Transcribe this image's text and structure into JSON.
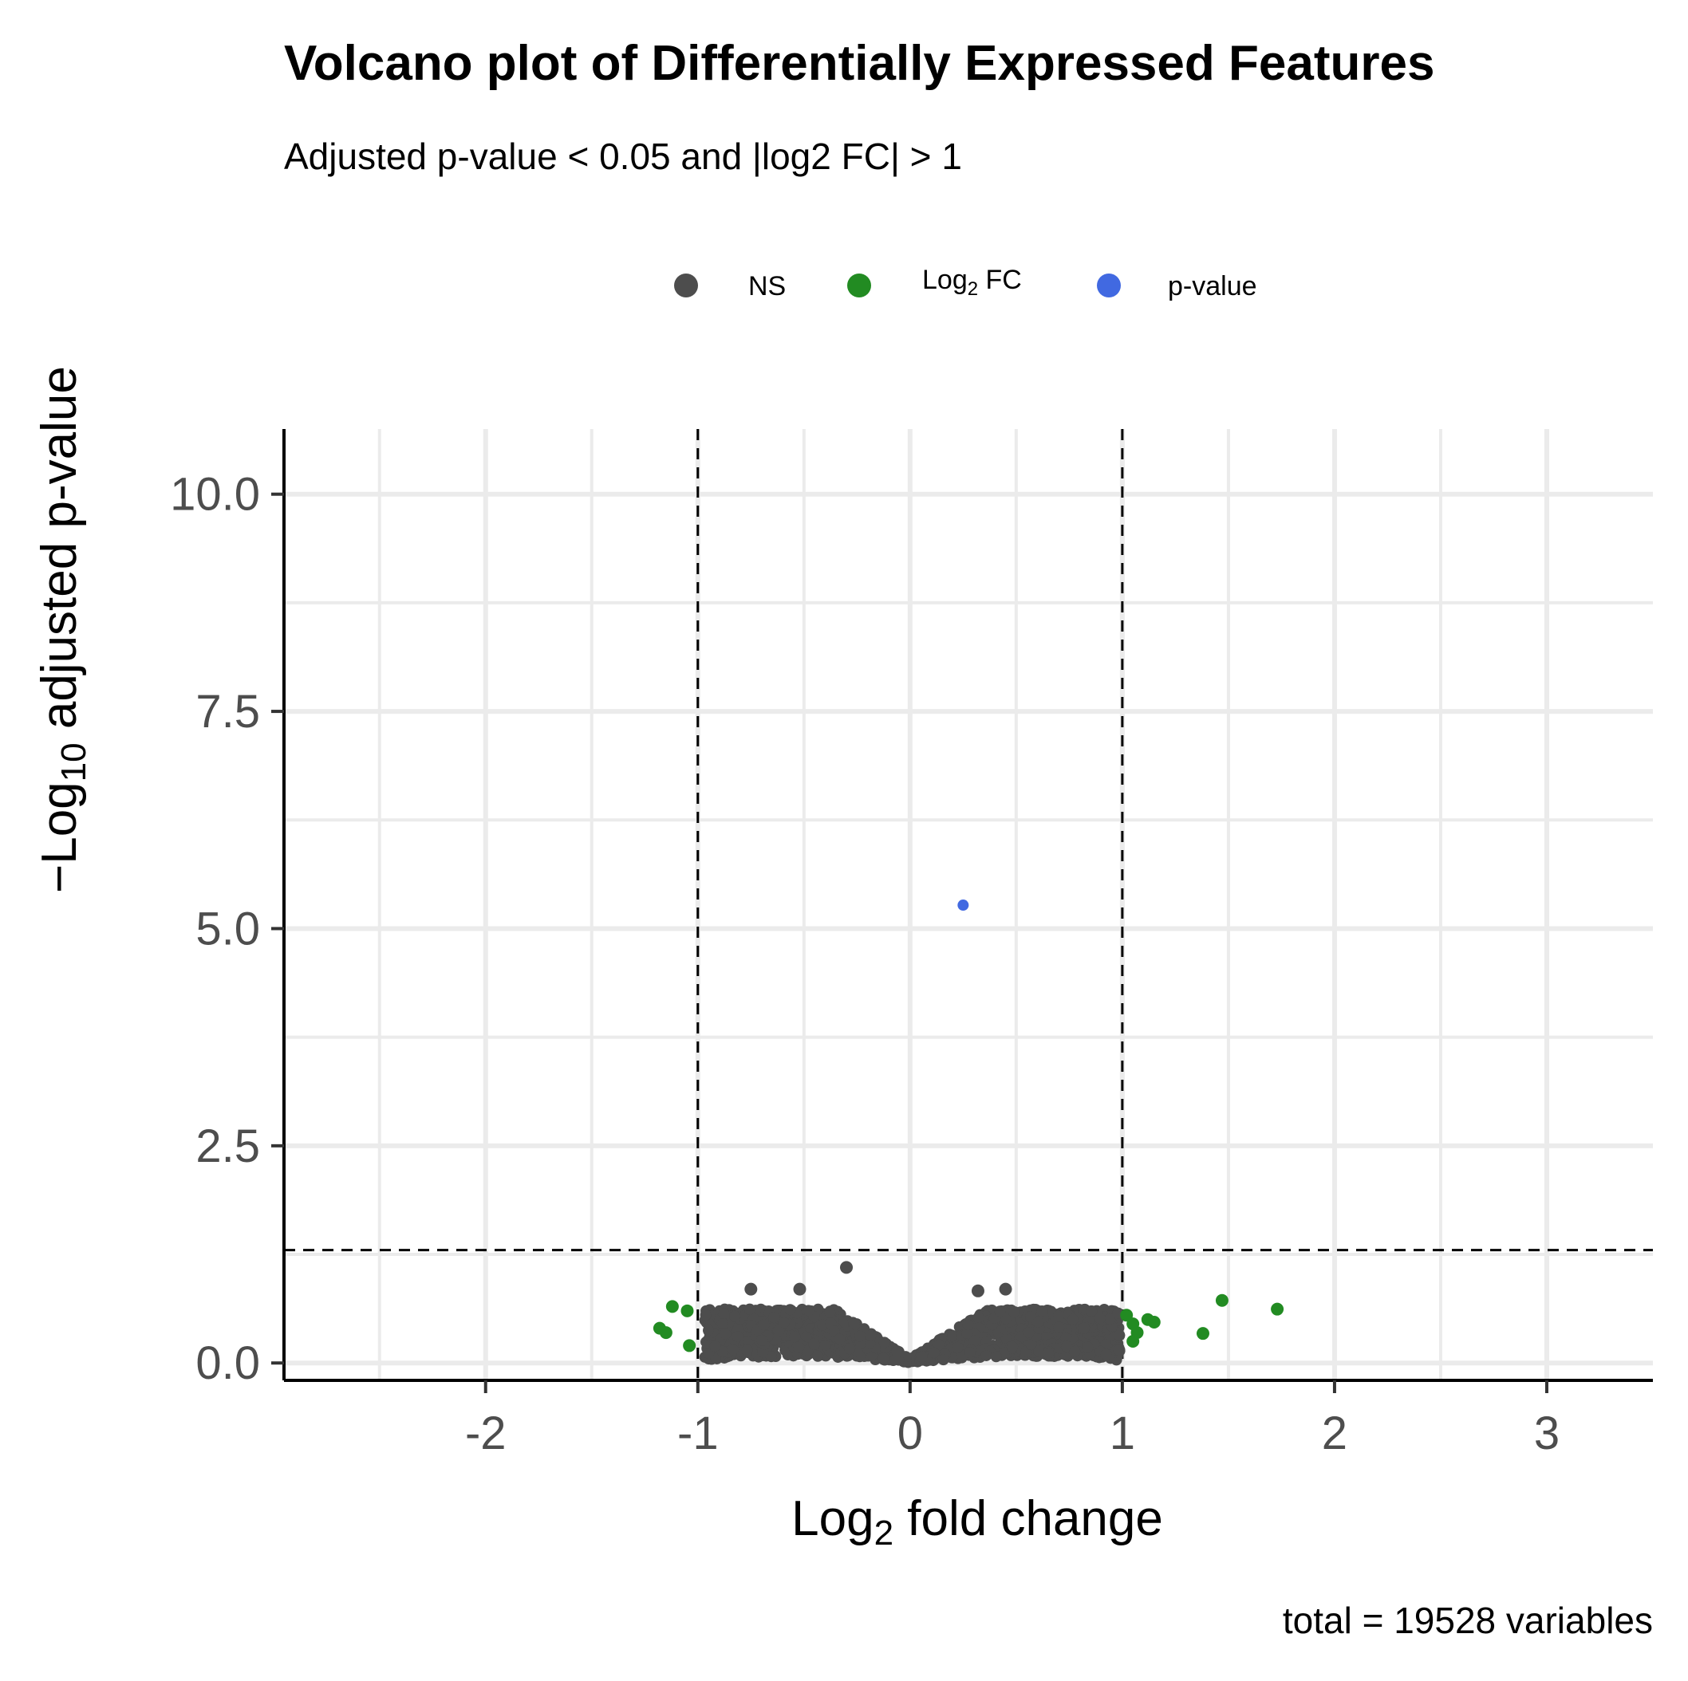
{
  "chart_data": {
    "type": "scatter",
    "title": "Volcano plot of Differentially Expressed Features",
    "subtitle": "Adjusted p-value < 0.05 and |log2 FC| > 1",
    "xlabel": {
      "base": "Log",
      "sub": "2",
      "rest": " fold change"
    },
    "ylabel": {
      "prefix": "−Log",
      "sub": "10",
      "rest": " adjusted p-value"
    },
    "caption": "total = 19528 variables",
    "xlim": [
      -2.95,
      3.5
    ],
    "ylim": [
      -0.2,
      10.75
    ],
    "x_ticks": [
      -2,
      -1,
      0,
      1,
      2,
      3
    ],
    "x_tick_labels": [
      "-2",
      "-1",
      "0",
      "1",
      "2",
      "3"
    ],
    "y_ticks": [
      0,
      2.5,
      5,
      7.5,
      10
    ],
    "y_tick_labels": [
      "0.0",
      "2.5",
      "5.0",
      "7.5",
      "10.0"
    ],
    "grid": true,
    "legend_position": "top",
    "legend": [
      {
        "key": "ns",
        "label": "NS",
        "color": "#4d4d4d"
      },
      {
        "key": "fc",
        "label": "Log",
        "sub": "2",
        "rest": " FC",
        "color": "#228b22"
      },
      {
        "key": "p",
        "label": "p-value",
        "color": "#4169e1"
      }
    ],
    "cutoffs": {
      "log2fc": [
        -1,
        1
      ],
      "neg_log10_p": 1.3
    },
    "highlight_points": [
      {
        "x": -0.3,
        "y": 1.1,
        "group": "ns"
      },
      {
        "x": -0.75,
        "y": 0.85,
        "group": "ns"
      },
      {
        "x": -0.52,
        "y": 0.85,
        "group": "ns"
      },
      {
        "x": 0.32,
        "y": 0.83,
        "group": "ns"
      },
      {
        "x": 0.45,
        "y": 0.85,
        "group": "ns"
      },
      {
        "x": 0.25,
        "y": 5.27,
        "group": "p"
      },
      {
        "x": -1.12,
        "y": 0.65,
        "group": "fc"
      },
      {
        "x": -1.05,
        "y": 0.6,
        "group": "fc"
      },
      {
        "x": -1.18,
        "y": 0.4,
        "group": "fc"
      },
      {
        "x": -1.15,
        "y": 0.35,
        "group": "fc"
      },
      {
        "x": -1.04,
        "y": 0.2,
        "group": "fc"
      },
      {
        "x": 1.02,
        "y": 0.55,
        "group": "fc"
      },
      {
        "x": 1.05,
        "y": 0.45,
        "group": "fc"
      },
      {
        "x": 1.07,
        "y": 0.35,
        "group": "fc"
      },
      {
        "x": 1.05,
        "y": 0.25,
        "group": "fc"
      },
      {
        "x": 1.12,
        "y": 0.5,
        "group": "fc"
      },
      {
        "x": 1.15,
        "y": 0.47,
        "group": "fc"
      },
      {
        "x": 1.38,
        "y": 0.34,
        "group": "fc"
      },
      {
        "x": 1.47,
        "y": 0.72,
        "group": "fc"
      },
      {
        "x": 1.73,
        "y": 0.62,
        "group": "fc"
      }
    ]
  }
}
